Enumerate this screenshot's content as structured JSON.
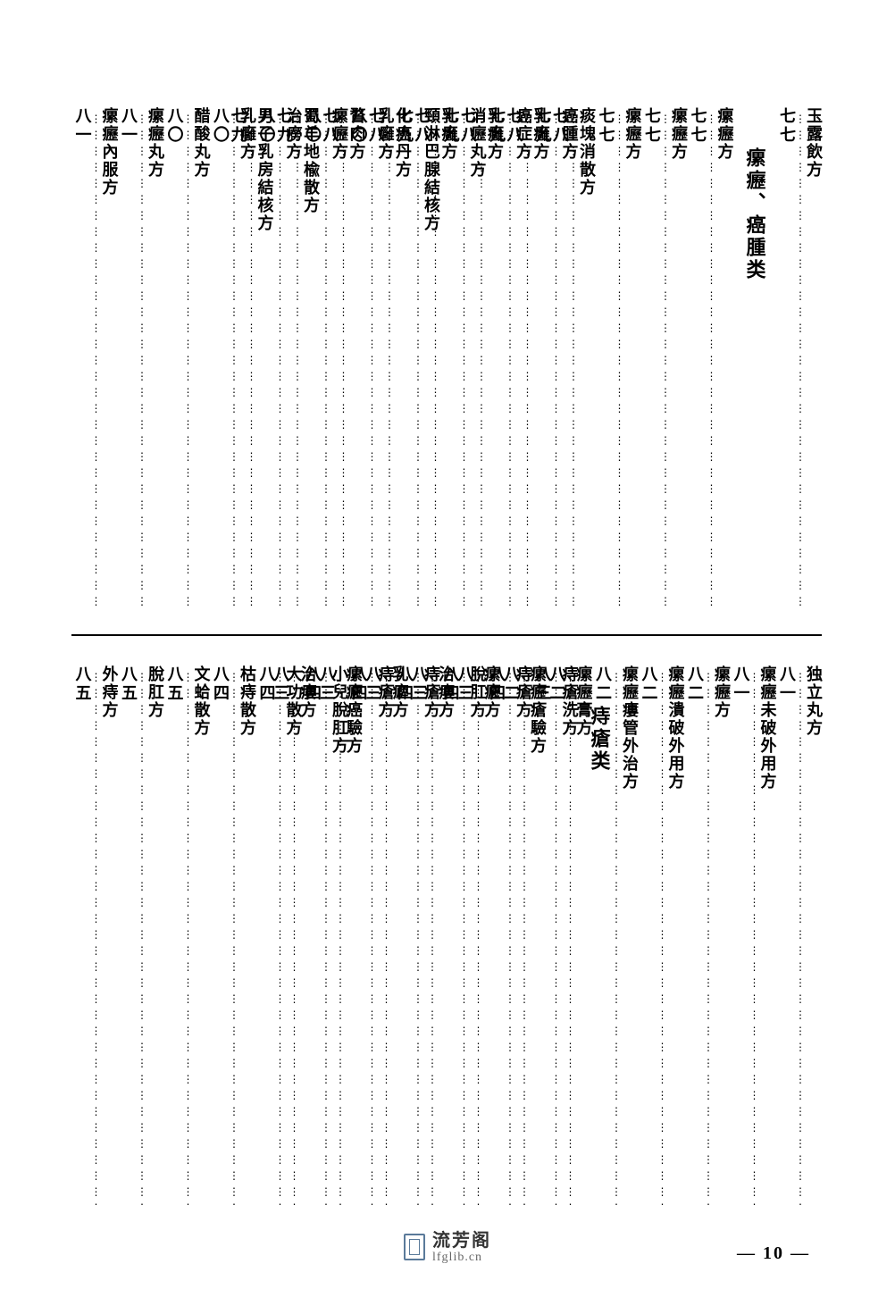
{
  "page_number_label": "— 10 —",
  "watermark": {
    "main": "流芳阁",
    "sub": "lfglib.cn"
  },
  "dots": "⋮⋮⋮⋮⋮⋮⋮⋮⋮⋮⋮⋮⋮⋮⋮⋮⋮⋮⋮⋮⋮⋮⋮⋮⋮⋮⋮⋮⋮⋮⋮⋮⋮⋮⋮⋮⋮⋮⋮⋮⋮⋮⋮⋮⋮⋮⋮⋮⋮⋮",
  "sections": {
    "top_right": {
      "heading": "瘰癧、癌腫类",
      "entries": [
        {
          "title": "玉露飲方",
          "page": "七七"
        },
        {
          "title": "瘰癧方",
          "page": "七七"
        },
        {
          "title": "瘰癧方",
          "page": "七七"
        },
        {
          "title": "瘰癧方",
          "page": "七七"
        },
        {
          "title": "痰塊消散方",
          "page": "七八"
        },
        {
          "title": "乳癰方",
          "page": "七八"
        },
        {
          "title": "乳癰方",
          "page": "七八"
        },
        {
          "title": "乳癰方",
          "page": "七八"
        },
        {
          "title": "化癌丹方",
          "page": "七八"
        },
        {
          "title": "瞀肉方",
          "page": "七八"
        },
        {
          "title": "蜀羊地楡散方",
          "page": "七九"
        },
        {
          "title": "男子乳房結核方",
          "page": "七九"
        }
      ]
    },
    "top_left": {
      "entries": [
        {
          "title": "癌腫方",
          "page": "七九"
        },
        {
          "title": "癌症方",
          "page": "七九"
        },
        {
          "title": "消癧丸方",
          "page": "七九"
        },
        {
          "title": "頸淋巴腺結核方",
          "page": "七九"
        },
        {
          "title": "乳癰方",
          "page": "八〇"
        },
        {
          "title": "瘰癧方",
          "page": "八〇"
        },
        {
          "title": "治癆方",
          "page": "八〇"
        },
        {
          "title": "乳癰方",
          "page": "八〇"
        },
        {
          "title": "醋酸丸方",
          "page": "八〇"
        },
        {
          "title": "瘰癧丸方",
          "page": "八一"
        },
        {
          "title": "瘰癧內服方",
          "page": "八一"
        }
      ]
    },
    "bottom_right": {
      "entries": [
        {
          "title": "独立丸方",
          "page": "八一"
        },
        {
          "title": "瘰癧未破外用方",
          "page": "八一"
        },
        {
          "title": "瘰癧方",
          "page": "八二"
        },
        {
          "title": "瘰癧潰破外用方",
          "page": "八二"
        },
        {
          "title": "瘰癧瘻管外治方",
          "page": "八二"
        },
        {
          "title": "瘰癧膏方",
          "page": "八二"
        },
        {
          "title": "瘰癧瘡驗方",
          "page": "八二"
        },
        {
          "title": "瘰癧方",
          "page": "八三"
        },
        {
          "title": "治瘻方",
          "page": "八三"
        },
        {
          "title": "乳癖方",
          "page": "八三"
        },
        {
          "title": "瘰癧癌驗方",
          "page": "八三"
        },
        {
          "title": "治瘻方",
          "page": "八三"
        }
      ]
    },
    "bottom_left": {
      "heading": "痔瘡类",
      "entries": [
        {
          "title": "痔瘡洗方",
          "page": "八三"
        },
        {
          "title": "痔瘡方",
          "page": "八四"
        },
        {
          "title": "脫肛方",
          "page": "八四"
        },
        {
          "title": "痔瘡方",
          "page": "八四"
        },
        {
          "title": "痔瘡方",
          "page": "八四"
        },
        {
          "title": "小兒脫肛方",
          "page": "八四"
        },
        {
          "title": "大功散方",
          "page": "八四"
        },
        {
          "title": "枯痔散方",
          "page": "八四"
        },
        {
          "title": "文蛤散方",
          "page": "八五"
        },
        {
          "title": "脫肛方",
          "page": "八五"
        },
        {
          "title": "外痔方",
          "page": "八五"
        }
      ]
    }
  }
}
